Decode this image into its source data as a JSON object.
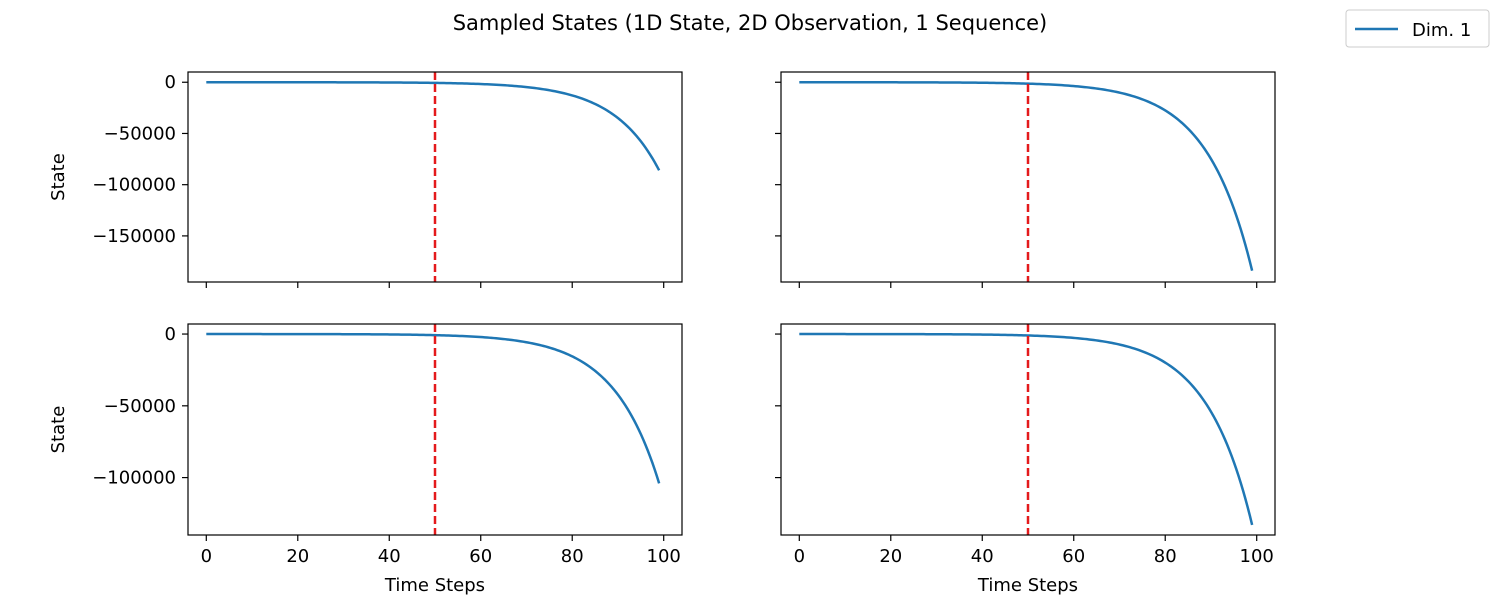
{
  "figure": {
    "title": "Sampled States (1D State, 2D Observation, 1 Sequence)"
  },
  "legend": {
    "placement": "top-right",
    "entries": [
      {
        "label": "Dim. 1",
        "color": "#1f77b4"
      }
    ]
  },
  "colors": {
    "series": "#1f77b4",
    "marker_line": "#e41a1c"
  },
  "chart_data": [
    {
      "type": "line",
      "xlim": [
        -4,
        104
      ],
      "ylim": [
        -195000,
        10000
      ],
      "xticks": [
        0,
        20,
        40,
        60,
        80,
        100
      ],
      "xtick_labels_visible": false,
      "yticks": [
        0,
        -50000,
        -100000,
        -150000
      ],
      "ytick_labels": [
        "0",
        "−50000",
        "−100000",
        "−150000"
      ],
      "ytick_labels_visible": true,
      "xlabel": "",
      "ylabel": "State",
      "vline_x": 50,
      "series": [
        {
          "name": "Dim. 1",
          "x_start": 0,
          "x_end": 99,
          "y_end": -86000,
          "growth_rate": 0.1
        }
      ]
    },
    {
      "type": "line",
      "xlim": [
        -4,
        104
      ],
      "ylim": [
        -195000,
        10000
      ],
      "xticks": [
        0,
        20,
        40,
        60,
        80,
        100
      ],
      "xtick_labels_visible": false,
      "yticks": [
        0,
        -50000,
        -100000,
        -150000
      ],
      "ytick_labels": [
        "0",
        "−50000",
        "−100000",
        "−150000"
      ],
      "ytick_labels_visible": false,
      "xlabel": "",
      "ylabel": "",
      "vline_x": 50,
      "series": [
        {
          "name": "Dim. 1",
          "x_start": 0,
          "x_end": 99,
          "y_end": -184000,
          "growth_rate": 0.1
        }
      ]
    },
    {
      "type": "line",
      "xlim": [
        -4,
        104
      ],
      "ylim": [
        -140000,
        7000
      ],
      "xticks": [
        0,
        20,
        40,
        60,
        80,
        100
      ],
      "xtick_labels": [
        "0",
        "20",
        "40",
        "60",
        "80",
        "100"
      ],
      "xtick_labels_visible": true,
      "yticks": [
        0,
        -50000,
        -100000
      ],
      "ytick_labels": [
        "0",
        "−50000",
        "−100000"
      ],
      "ytick_labels_visible": true,
      "xlabel": "Time Steps",
      "ylabel": "State",
      "vline_x": 50,
      "series": [
        {
          "name": "Dim. 1",
          "x_start": 0,
          "x_end": 99,
          "y_end": -104000,
          "growth_rate": 0.1
        }
      ]
    },
    {
      "type": "line",
      "xlim": [
        -4,
        104
      ],
      "ylim": [
        -140000,
        7000
      ],
      "xticks": [
        0,
        20,
        40,
        60,
        80,
        100
      ],
      "xtick_labels": [
        "0",
        "20",
        "40",
        "60",
        "80",
        "100"
      ],
      "xtick_labels_visible": true,
      "yticks": [
        0,
        -50000,
        -100000
      ],
      "ytick_labels": [
        "0",
        "−50000",
        "−100000"
      ],
      "ytick_labels_visible": false,
      "xlabel": "Time Steps",
      "ylabel": "",
      "vline_x": 50,
      "series": [
        {
          "name": "Dim. 1",
          "x_start": 0,
          "x_end": 99,
          "y_end": -133000,
          "growth_rate": 0.1
        }
      ]
    }
  ]
}
